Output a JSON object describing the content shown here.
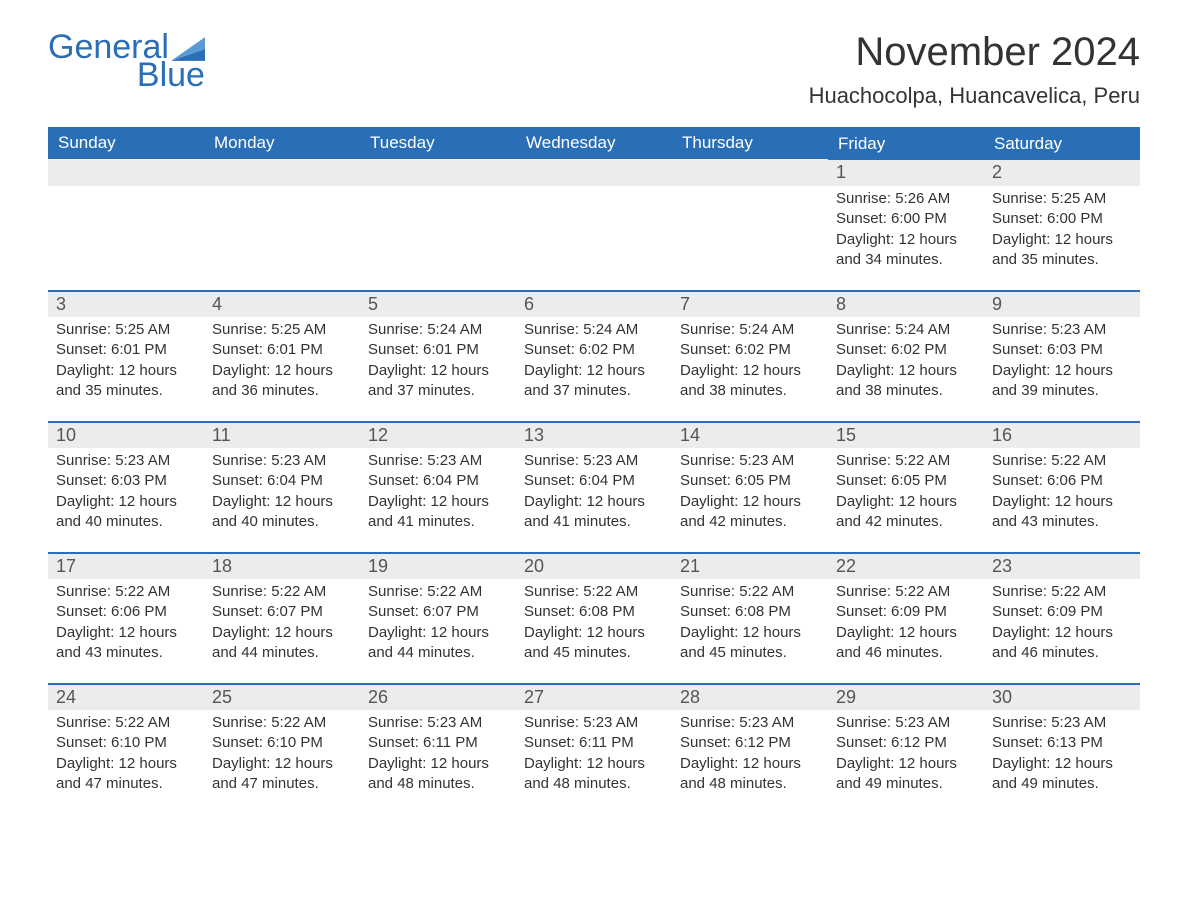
{
  "logo": {
    "line1": "General",
    "line2": "Blue",
    "icon_color": "#2a6fb5"
  },
  "title": "November 2024",
  "location": "Huachocolpa, Huancavelica, Peru",
  "styling": {
    "header_bg": "#2a6fb5",
    "header_fg": "#ffffff",
    "daynum_bg": "#ececec",
    "daynum_border": "#2a6fb5",
    "body_bg": "#ffffff",
    "text_color": "#333333",
    "title_fontsize": 40,
    "location_fontsize": 22,
    "header_fontsize": 17,
    "daynum_fontsize": 18,
    "body_fontsize": 15,
    "columns": 7,
    "rows": 5
  },
  "weekdays": [
    "Sunday",
    "Monday",
    "Tuesday",
    "Wednesday",
    "Thursday",
    "Friday",
    "Saturday"
  ],
  "weeks": [
    [
      null,
      null,
      null,
      null,
      null,
      {
        "n": "1",
        "sr": "Sunrise: 5:26 AM",
        "ss": "Sunset: 6:00 PM",
        "d1": "Daylight: 12 hours",
        "d2": "and 34 minutes."
      },
      {
        "n": "2",
        "sr": "Sunrise: 5:25 AM",
        "ss": "Sunset: 6:00 PM",
        "d1": "Daylight: 12 hours",
        "d2": "and 35 minutes."
      }
    ],
    [
      {
        "n": "3",
        "sr": "Sunrise: 5:25 AM",
        "ss": "Sunset: 6:01 PM",
        "d1": "Daylight: 12 hours",
        "d2": "and 35 minutes."
      },
      {
        "n": "4",
        "sr": "Sunrise: 5:25 AM",
        "ss": "Sunset: 6:01 PM",
        "d1": "Daylight: 12 hours",
        "d2": "and 36 minutes."
      },
      {
        "n": "5",
        "sr": "Sunrise: 5:24 AM",
        "ss": "Sunset: 6:01 PM",
        "d1": "Daylight: 12 hours",
        "d2": "and 37 minutes."
      },
      {
        "n": "6",
        "sr": "Sunrise: 5:24 AM",
        "ss": "Sunset: 6:02 PM",
        "d1": "Daylight: 12 hours",
        "d2": "and 37 minutes."
      },
      {
        "n": "7",
        "sr": "Sunrise: 5:24 AM",
        "ss": "Sunset: 6:02 PM",
        "d1": "Daylight: 12 hours",
        "d2": "and 38 minutes."
      },
      {
        "n": "8",
        "sr": "Sunrise: 5:24 AM",
        "ss": "Sunset: 6:02 PM",
        "d1": "Daylight: 12 hours",
        "d2": "and 38 minutes."
      },
      {
        "n": "9",
        "sr": "Sunrise: 5:23 AM",
        "ss": "Sunset: 6:03 PM",
        "d1": "Daylight: 12 hours",
        "d2": "and 39 minutes."
      }
    ],
    [
      {
        "n": "10",
        "sr": "Sunrise: 5:23 AM",
        "ss": "Sunset: 6:03 PM",
        "d1": "Daylight: 12 hours",
        "d2": "and 40 minutes."
      },
      {
        "n": "11",
        "sr": "Sunrise: 5:23 AM",
        "ss": "Sunset: 6:04 PM",
        "d1": "Daylight: 12 hours",
        "d2": "and 40 minutes."
      },
      {
        "n": "12",
        "sr": "Sunrise: 5:23 AM",
        "ss": "Sunset: 6:04 PM",
        "d1": "Daylight: 12 hours",
        "d2": "and 41 minutes."
      },
      {
        "n": "13",
        "sr": "Sunrise: 5:23 AM",
        "ss": "Sunset: 6:04 PM",
        "d1": "Daylight: 12 hours",
        "d2": "and 41 minutes."
      },
      {
        "n": "14",
        "sr": "Sunrise: 5:23 AM",
        "ss": "Sunset: 6:05 PM",
        "d1": "Daylight: 12 hours",
        "d2": "and 42 minutes."
      },
      {
        "n": "15",
        "sr": "Sunrise: 5:22 AM",
        "ss": "Sunset: 6:05 PM",
        "d1": "Daylight: 12 hours",
        "d2": "and 42 minutes."
      },
      {
        "n": "16",
        "sr": "Sunrise: 5:22 AM",
        "ss": "Sunset: 6:06 PM",
        "d1": "Daylight: 12 hours",
        "d2": "and 43 minutes."
      }
    ],
    [
      {
        "n": "17",
        "sr": "Sunrise: 5:22 AM",
        "ss": "Sunset: 6:06 PM",
        "d1": "Daylight: 12 hours",
        "d2": "and 43 minutes."
      },
      {
        "n": "18",
        "sr": "Sunrise: 5:22 AM",
        "ss": "Sunset: 6:07 PM",
        "d1": "Daylight: 12 hours",
        "d2": "and 44 minutes."
      },
      {
        "n": "19",
        "sr": "Sunrise: 5:22 AM",
        "ss": "Sunset: 6:07 PM",
        "d1": "Daylight: 12 hours",
        "d2": "and 44 minutes."
      },
      {
        "n": "20",
        "sr": "Sunrise: 5:22 AM",
        "ss": "Sunset: 6:08 PM",
        "d1": "Daylight: 12 hours",
        "d2": "and 45 minutes."
      },
      {
        "n": "21",
        "sr": "Sunrise: 5:22 AM",
        "ss": "Sunset: 6:08 PM",
        "d1": "Daylight: 12 hours",
        "d2": "and 45 minutes."
      },
      {
        "n": "22",
        "sr": "Sunrise: 5:22 AM",
        "ss": "Sunset: 6:09 PM",
        "d1": "Daylight: 12 hours",
        "d2": "and 46 minutes."
      },
      {
        "n": "23",
        "sr": "Sunrise: 5:22 AM",
        "ss": "Sunset: 6:09 PM",
        "d1": "Daylight: 12 hours",
        "d2": "and 46 minutes."
      }
    ],
    [
      {
        "n": "24",
        "sr": "Sunrise: 5:22 AM",
        "ss": "Sunset: 6:10 PM",
        "d1": "Daylight: 12 hours",
        "d2": "and 47 minutes."
      },
      {
        "n": "25",
        "sr": "Sunrise: 5:22 AM",
        "ss": "Sunset: 6:10 PM",
        "d1": "Daylight: 12 hours",
        "d2": "and 47 minutes."
      },
      {
        "n": "26",
        "sr": "Sunrise: 5:23 AM",
        "ss": "Sunset: 6:11 PM",
        "d1": "Daylight: 12 hours",
        "d2": "and 48 minutes."
      },
      {
        "n": "27",
        "sr": "Sunrise: 5:23 AM",
        "ss": "Sunset: 6:11 PM",
        "d1": "Daylight: 12 hours",
        "d2": "and 48 minutes."
      },
      {
        "n": "28",
        "sr": "Sunrise: 5:23 AM",
        "ss": "Sunset: 6:12 PM",
        "d1": "Daylight: 12 hours",
        "d2": "and 48 minutes."
      },
      {
        "n": "29",
        "sr": "Sunrise: 5:23 AM",
        "ss": "Sunset: 6:12 PM",
        "d1": "Daylight: 12 hours",
        "d2": "and 49 minutes."
      },
      {
        "n": "30",
        "sr": "Sunrise: 5:23 AM",
        "ss": "Sunset: 6:13 PM",
        "d1": "Daylight: 12 hours",
        "d2": "and 49 minutes."
      }
    ]
  ]
}
